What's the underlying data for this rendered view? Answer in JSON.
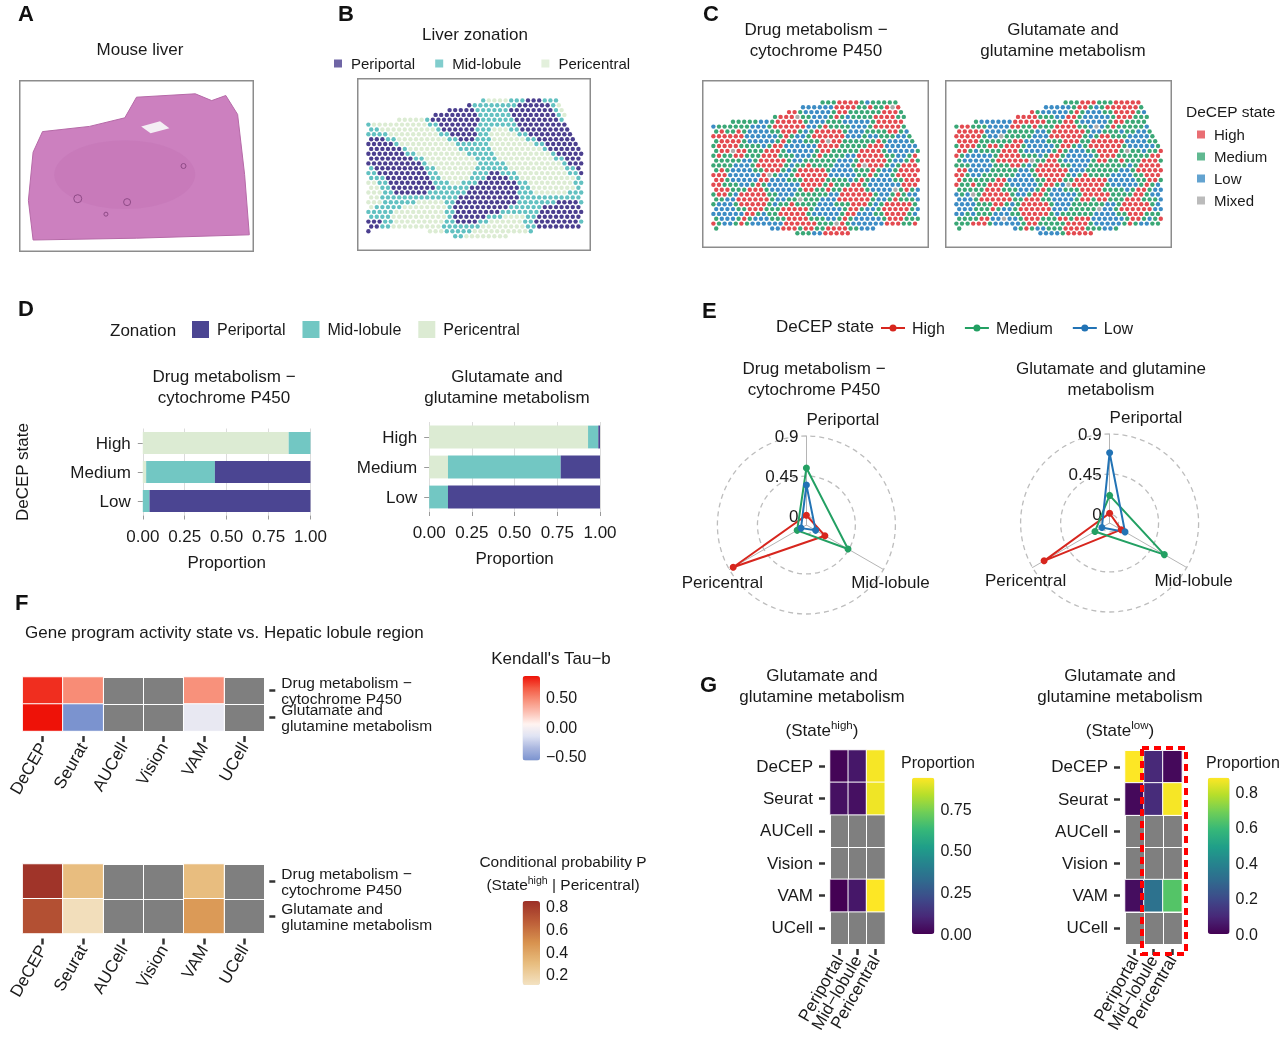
{
  "chart_data": [
    {
      "type": "other",
      "title": "Mouse liver",
      "annotations": [
        "A"
      ]
    },
    {
      "type": "other",
      "title": "Liver zonation",
      "annotations": [
        "B"
      ],
      "legend": "top",
      "series": [
        {
          "name": "Periportal",
          "color": "#4b3f8f"
        },
        {
          "name": "Mid-lobule",
          "color": "#62c1c1"
        },
        {
          "name": "Pericentral",
          "color": "#dcecd3"
        }
      ]
    },
    {
      "type": "other",
      "title": "Drug metabolism − cytochrome P450",
      "annotations": [
        "C"
      ],
      "series": [
        {
          "color": "#e34a50"
        },
        {
          "color": "#3aa776"
        },
        {
          "color": "#3c8cc4"
        },
        {
          "color": "#aaaaaa"
        }
      ]
    },
    {
      "type": "other",
      "title": "Glutamate and glutamine metabolism",
      "legend": "right",
      "legend_title": "DeCEP state",
      "series": [
        {
          "name": "High",
          "color": "#e34a50"
        },
        {
          "name": "Medium",
          "color": "#3aa776"
        },
        {
          "name": "Low",
          "color": "#3c8cc4"
        },
        {
          "name": "Mixed",
          "color": "#aaaaaa"
        }
      ]
    },
    {
      "type": "bar",
      "orientation": "horizontal",
      "stacked": true,
      "title": "Drug metabolism − cytochrome P450",
      "annotations": [
        "D"
      ],
      "categories": [
        "High",
        "Medium",
        "Low"
      ],
      "series": [
        {
          "name": "Pericentral",
          "color": "#dcebd3",
          "values": [
            0.87,
            0.02,
            0
          ]
        },
        {
          "name": "Mid-lobule",
          "color": "#72c7c3",
          "values": [
            0.13,
            0.41,
            0.04
          ]
        },
        {
          "name": "Periportal",
          "color": "#4b4592",
          "values": [
            0,
            0.57,
            0.96
          ]
        }
      ],
      "xlim": [
        0,
        1
      ],
      "xticks": [
        {
          "value": 0,
          "label": "0.00"
        },
        {
          "value": 0.25,
          "label": "0.25"
        },
        {
          "value": 0.5,
          "label": "0.50"
        },
        {
          "value": 0.75,
          "label": "0.75"
        },
        {
          "value": 1,
          "label": "1.00"
        }
      ],
      "xlabel": "Proportion",
      "ylabel": "DeCEP state",
      "legend": "top",
      "legend_title": "Zonation",
      "grid": "x"
    },
    {
      "type": "bar",
      "orientation": "horizontal",
      "stacked": true,
      "title": "Glutamate and glutamine metabolism",
      "categories": [
        "High",
        "Medium",
        "Low"
      ],
      "series": [
        {
          "color": "#dcebd3",
          "values": [
            0.93,
            0.11,
            0
          ]
        },
        {
          "color": "#72c7c3",
          "values": [
            0.06,
            0.66,
            0.11
          ]
        },
        {
          "color": "#4b4592",
          "values": [
            0.01,
            0.23,
            0.89
          ]
        }
      ],
      "xlim": [
        0,
        1
      ],
      "xticks": [
        {
          "value": 0,
          "label": "0.00"
        },
        {
          "value": 0.25,
          "label": "0.25"
        },
        {
          "value": 0.5,
          "label": "0.50"
        },
        {
          "value": 0.75,
          "label": "0.75"
        },
        {
          "value": 1,
          "label": "1.00"
        }
      ],
      "xlabel": "Proportion",
      "grid": "x"
    },
    {
      "type": "radar",
      "title": "Drug metabolism − cytochrome P450",
      "annotations": [
        "E"
      ],
      "categories": [
        "Periportal",
        "Mid-lobule",
        "Pericentral"
      ],
      "series": [
        {
          "name": "High",
          "color": "#d7261e",
          "values": [
            0.01,
            0.14,
            0.85
          ]
        },
        {
          "name": "Medium",
          "color": "#23a063",
          "values": [
            0.54,
            0.44,
            0.02
          ]
        },
        {
          "name": "Low",
          "color": "#2273b5",
          "values": [
            0.35,
            0.02,
            -0.03
          ]
        }
      ],
      "ylim": [
        -0.1,
        0.9
      ],
      "yticks": [
        0,
        0.45,
        0.9
      ],
      "legend": "top",
      "legend_title": "DeCEP state",
      "marker": "circle",
      "grid": true
    },
    {
      "type": "radar",
      "title": "Glutamate and glutamine metabolism",
      "categories": [
        "Periportal",
        "Mid-lobule",
        "Pericentral"
      ],
      "series": [
        {
          "color": "#d7261e",
          "values": [
            0.01,
            0.05,
            0.75
          ]
        },
        {
          "color": "#23a063",
          "values": [
            0.21,
            0.61,
            0.09
          ]
        },
        {
          "color": "#2273b5",
          "values": [
            0.69,
            0.1,
            0
          ]
        }
      ],
      "ylim": [
        -0.1,
        0.9
      ],
      "yticks": [
        0,
        0.45,
        0.9
      ],
      "marker": "circle",
      "grid": true
    },
    {
      "type": "heatmap",
      "title": "Gene program activity state vs. Hepatic lobule region",
      "annotations": [
        "F"
      ],
      "categories": [
        "DeCEP",
        "Seurat",
        "AUCell",
        "Vision",
        "VAM",
        "UCell"
      ],
      "y_categories": [
        "Drug metabolism − cytochrome P450",
        "Glutamate and glutamine metabolism"
      ],
      "cells": [
        [
          0.78,
          0.47,
          null,
          null,
          0.45,
          null
        ],
        [
          0.86,
          -0.56,
          null,
          null,
          -0.1,
          null
        ]
      ],
      "clim": [
        -0.56,
        0.86
      ],
      "cticks": [
        {
          "value": -0.5,
          "label": "−0.50"
        },
        {
          "value": 0,
          "label": "0.00"
        },
        {
          "value": 0.5,
          "label": "0.50"
        }
      ],
      "clabel": "Kendall's Tau−b",
      "colors": [
        "#7b93cf",
        "#a9b6df",
        "#dfe3f3",
        "#fff4f1",
        "#fcc0b3",
        "#f8907a",
        "#f45a43",
        "#ee1208"
      ]
    },
    {
      "type": "heatmap",
      "categories": [
        "DeCEP",
        "Seurat",
        "AUCell",
        "Vision",
        "VAM",
        "UCell"
      ],
      "y_categories": [
        "Drug metabolism − cytochrome P450",
        "Glutamate and glutamine metabolism"
      ],
      "cells": [
        [
          0.83,
          0.3,
          null,
          null,
          0.3,
          null
        ],
        [
          0.72,
          0.13,
          null,
          null,
          0.45,
          null
        ]
      ],
      "clim": [
        0.11,
        0.85
      ],
      "cticks": [
        0.2,
        0.4,
        0.6,
        0.8
      ],
      "clabel": "Conditional probability P (State$^{high}$ | Pericentral)",
      "colors": [
        "#f3e2c2",
        "#e8be80",
        "#d8934f",
        "#bd5e38",
        "#9c2f27"
      ]
    },
    {
      "type": "heatmap",
      "title": "Glutamate and glutamine metabolism",
      "subtitle": "(State$^{high}$)",
      "annotations": [
        "G"
      ],
      "categories": [
        "Periportal",
        "Mid−lobule",
        "Pericentral"
      ],
      "y_categories": [
        "DeCEP",
        "Seurat",
        "AUCell",
        "Vision",
        "VAM",
        "UCell"
      ],
      "cells": [
        [
          0.01,
          0.06,
          0.93
        ],
        [
          0.04,
          0.04,
          0.92
        ],
        [
          null,
          null,
          null
        ],
        [
          null,
          null,
          null
        ],
        [
          0,
          0.06,
          0.94
        ],
        [
          null,
          null,
          null
        ]
      ],
      "clim": [
        0,
        0.94
      ],
      "cticks": [
        {
          "value": 0,
          "label": "0.00"
        },
        0.25,
        {
          "value": 0.5,
          "label": "0.50"
        },
        0.75
      ],
      "clabel": "Proportion",
      "colors": [
        "#440154",
        "#482878",
        "#3e4989",
        "#31688e",
        "#26828e",
        "#1f9e89",
        "#35b779",
        "#6ece58",
        "#b5de2b",
        "#fde725"
      ]
    },
    {
      "type": "heatmap",
      "title": "Glutamate and glutamine metabolism",
      "subtitle": "(State$^{low}$)",
      "categories": [
        "Periportal",
        "Mid−lobule",
        "Pericentral"
      ],
      "y_categories": [
        "DeCEP",
        "Seurat",
        "AUCell",
        "Vision",
        "VAM",
        "UCell"
      ],
      "cells": [
        [
          0.88,
          0.1,
          0.02
        ],
        [
          0.02,
          0.11,
          0.87
        ],
        [
          null,
          null,
          null
        ],
        [
          null,
          null,
          null
        ],
        [
          0.03,
          0.33,
          0.64
        ],
        [
          null,
          null,
          null
        ]
      ],
      "clim": [
        0,
        0.88
      ],
      "cticks": [
        {
          "value": 0,
          "label": "0.0"
        },
        0.2,
        0.4,
        0.6,
        0.8
      ],
      "clabel": "Proportion",
      "colors": [
        "#440154",
        "#482878",
        "#3e4989",
        "#31688e",
        "#26828e",
        "#1f9e89",
        "#35b779",
        "#6ece58",
        "#b5de2b",
        "#fde725"
      ]
    }
  ]
}
